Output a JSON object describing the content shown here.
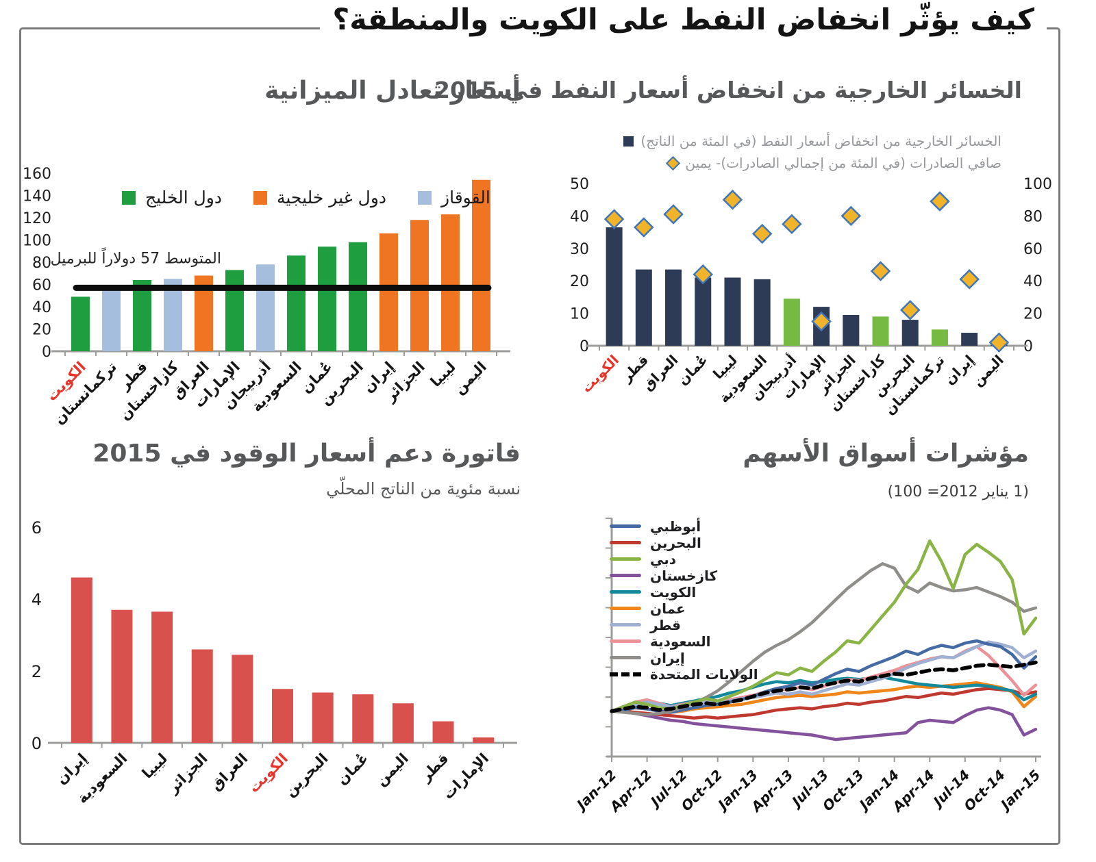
{
  "ui": {
    "main_title": "كيف يؤثّر انخفاض النفط على الكويت والمنطقة؟",
    "colors": {
      "frame": "#7b7b7b",
      "chart_title": "#57585a",
      "highlight_red": "#e8342a",
      "axis_gray": "#9c9c9a"
    }
  },
  "chart_data": [
    {
      "id": "budget_breakeven_prices",
      "type": "bar",
      "title": "أسعار تعادل الميزانية",
      "categories": [
        "الكويت",
        "تركمانستان",
        "قطر",
        "كازاخستان",
        "العراق",
        "الإمارات",
        "أذربيجان",
        "السعودية",
        "عُمان",
        "البحرين",
        "إيران",
        "الجزائر",
        "ليبيا",
        "اليمن"
      ],
      "values": [
        49,
        57,
        64,
        65,
        68,
        73,
        78,
        86,
        94,
        98,
        106,
        118,
        123,
        154
      ],
      "groups": [
        "gulf",
        "caucasus",
        "gulf",
        "caucasus",
        "non_gulf",
        "gulf",
        "caucasus",
        "gulf",
        "gulf",
        "gulf",
        "non_gulf",
        "non_gulf",
        "non_gulf",
        "non_gulf"
      ],
      "group_colors": {
        "gulf": "#1e9e3e",
        "non_gulf": "#ef7522",
        "caucasus": "#a6bedd"
      },
      "legend": [
        {
          "label": "دول الخليج",
          "group": "gulf"
        },
        {
          "label": "دول غير خليجية",
          "group": "non_gulf"
        },
        {
          "label": "القوقاز",
          "group": "caucasus"
        }
      ],
      "average_line": {
        "value": 57,
        "label": "المتوسط 57 دولاراً للبرميل",
        "color": "#0d0d0d"
      },
      "ylim": [
        0,
        160
      ],
      "yticks": [
        0,
        20,
        40,
        60,
        80,
        100,
        120,
        140,
        160
      ],
      "highlight_category": "الكويت"
    },
    {
      "id": "external_losses_2015",
      "type": "bar_scatter",
      "title": "الخسائر الخارجية من انخفاض أسعار النفط في 2015",
      "categories": [
        "الكويت",
        "قطر",
        "العراق",
        "عُمان",
        "ليبيا",
        "السعودية",
        "أذربيجان",
        "الإمارات",
        "الجزائر",
        "كازاخستان",
        "البحرين",
        "تركمانستان",
        "إيران",
        "اليمن"
      ],
      "bar_series": {
        "label": "الخسائر الخارجية من انخفاض أسعار النفط (في المئة من الناتج)",
        "values": [
          36.5,
          23.5,
          23.5,
          21,
          21,
          20.5,
          14.5,
          12,
          9.5,
          9,
          8,
          5,
          4,
          0.5
        ]
      },
      "bar_color_default": "#2e3b57",
      "bar_color_alt": "#76b943",
      "alt_color_indices": [
        6,
        9,
        11
      ],
      "diamond_series": {
        "label": "صافي الصادرات (في المئة من إجمالي الصادرات)- يمين",
        "values": [
          78,
          73,
          81,
          44,
          90,
          69,
          75,
          15,
          80,
          46,
          22,
          89,
          41,
          2
        ],
        "fill": "#f0b32a",
        "stroke": "#3f76bb"
      },
      "ylim_left": [
        0,
        50
      ],
      "yticks_left": [
        0,
        10,
        20,
        30,
        40,
        50
      ],
      "ylim_right": [
        0,
        100
      ],
      "yticks_right": [
        0,
        20,
        40,
        60,
        80,
        100
      ],
      "highlight_category": "الكويت"
    },
    {
      "id": "fuel_subsidy_bill_2015",
      "type": "bar",
      "title": "فاتورة دعم أسعار الوقود في 2015",
      "subtitle": "نسبة مئوية من الناتج المحلّي",
      "categories": [
        "إيران",
        "السعودية",
        "ليبيا",
        "الجزائر",
        "العراق",
        "الكويت",
        "البحرين",
        "عُمان",
        "اليمن",
        "قطر",
        "الإمارات"
      ],
      "values": [
        4.6,
        3.7,
        3.65,
        2.6,
        2.45,
        1.5,
        1.4,
        1.35,
        1.1,
        0.6,
        0.15
      ],
      "bar_color": "#d8514c",
      "ylim": [
        0,
        6
      ],
      "yticks": [
        0,
        2,
        4,
        6
      ],
      "highlight_category": "الكويت"
    },
    {
      "id": "stock_market_indices",
      "type": "line",
      "title": "مؤشرات أسواق الأسهم",
      "subtitle": "(1 يناير 2012= 100)",
      "baseline": 100,
      "ylim": [
        60,
        270
      ],
      "x_tick_labels": [
        "Jan-12",
        "Apr-12",
        "Jul-12",
        "Oct-12",
        "Jan-13",
        "Apr-13",
        "Jul-13",
        "Oct-13",
        "Jan-14",
        "Apr-14",
        "Jul-14",
        "Oct-14",
        "Jan-15"
      ],
      "months_per_tick": 3,
      "series": [
        {
          "name": "أبوظبي",
          "color": "#456ba4",
          "dashed": false,
          "values": [
            100,
            101,
            103,
            102,
            100,
            99,
            101,
            103,
            105,
            106,
            108,
            110,
            113,
            117,
            120,
            122,
            125,
            123,
            128,
            133,
            137,
            135,
            140,
            144,
            148,
            153,
            150,
            155,
            158,
            156,
            160,
            162,
            159,
            157,
            150,
            138,
            148
          ]
        },
        {
          "name": "البحرين",
          "color": "#bf392f",
          "dashed": false,
          "values": [
            100,
            100,
            99,
            98,
            97,
            96,
            95,
            94,
            95,
            94,
            95,
            96,
            97,
            99,
            101,
            102,
            103,
            102,
            104,
            105,
            107,
            106,
            108,
            109,
            111,
            113,
            112,
            114,
            116,
            115,
            117,
            119,
            120,
            119,
            118,
            115,
            117
          ]
        },
        {
          "name": "دبي",
          "color": "#8ab445",
          "dashed": false,
          "values": [
            100,
            104,
            108,
            106,
            103,
            102,
            105,
            108,
            111,
            109,
            113,
            117,
            122,
            128,
            134,
            132,
            138,
            135,
            144,
            152,
            162,
            160,
            172,
            184,
            196,
            212,
            225,
            250,
            232,
            208,
            238,
            247,
            240,
            232,
            216,
            168,
            182
          ]
        },
        {
          "name": "كازخستان",
          "color": "#84519c",
          "dashed": false,
          "values": [
            100,
            100,
            98,
            96,
            94,
            92,
            91,
            89,
            88,
            87,
            86,
            85,
            84,
            83,
            82,
            81,
            80,
            79,
            77,
            75,
            76,
            77,
            78,
            79,
            80,
            81,
            90,
            92,
            91,
            90,
            96,
            101,
            103,
            101,
            97,
            79,
            84
          ]
        },
        {
          "name": "الكويت",
          "color": "#13899b",
          "dashed": false,
          "values": [
            100,
            102,
            105,
            108,
            107,
            105,
            107,
            109,
            111,
            113,
            116,
            118,
            121,
            124,
            126,
            125,
            127,
            125,
            126,
            128,
            129,
            128,
            129,
            130,
            128,
            126,
            124,
            123,
            122,
            121,
            122,
            123,
            122,
            120,
            118,
            110,
            115
          ]
        },
        {
          "name": "عمان",
          "color": "#f08519",
          "dashed": false,
          "values": [
            100,
            101,
            103,
            102,
            100,
            99,
            100,
            102,
            103,
            104,
            105,
            106,
            108,
            110,
            112,
            113,
            114,
            113,
            114,
            115,
            117,
            116,
            117,
            118,
            119,
            121,
            122,
            121,
            122,
            123,
            124,
            125,
            123,
            121,
            117,
            104,
            113
          ]
        },
        {
          "name": "قطر",
          "color": "#9fb0d3",
          "dashed": false,
          "values": [
            100,
            103,
            106,
            108,
            106,
            104,
            105,
            107,
            108,
            107,
            109,
            111,
            112,
            114,
            116,
            115,
            117,
            115,
            118,
            121,
            124,
            123,
            126,
            129,
            133,
            138,
            142,
            145,
            148,
            147,
            152,
            157,
            161,
            159,
            156,
            147,
            153
          ]
        },
        {
          "name": "السعودية",
          "color": "#ec9399",
          "dashed": false,
          "values": [
            100,
            104,
            108,
            110,
            107,
            104,
            106,
            108,
            109,
            108,
            110,
            112,
            114,
            117,
            120,
            119,
            121,
            119,
            122,
            125,
            128,
            127,
            130,
            133,
            136,
            140,
            143,
            146,
            148,
            147,
            153,
            157,
            149,
            138,
            127,
            114,
            123
          ]
        },
        {
          "name": "إيران",
          "color": "#908e8a",
          "dashed": false,
          "values": [
            100,
            99,
            98,
            97,
            98,
            100,
            103,
            107,
            112,
            118,
            126,
            135,
            144,
            152,
            158,
            163,
            170,
            178,
            188,
            198,
            208,
            216,
            224,
            230,
            226,
            210,
            205,
            213,
            209,
            206,
            207,
            209,
            205,
            201,
            196,
            188,
            191
          ]
        },
        {
          "name": "الولايات المتحدة",
          "color": "#000000",
          "dashed": true,
          "values": [
            100,
            102,
            104,
            103,
            101,
            102,
            104,
            106,
            107,
            106,
            108,
            110,
            113,
            116,
            118,
            119,
            121,
            120,
            123,
            125,
            127,
            126,
            129,
            131,
            133,
            132,
            134,
            136,
            137,
            136,
            138,
            140,
            141,
            140,
            139,
            141,
            143
          ]
        }
      ]
    }
  ]
}
